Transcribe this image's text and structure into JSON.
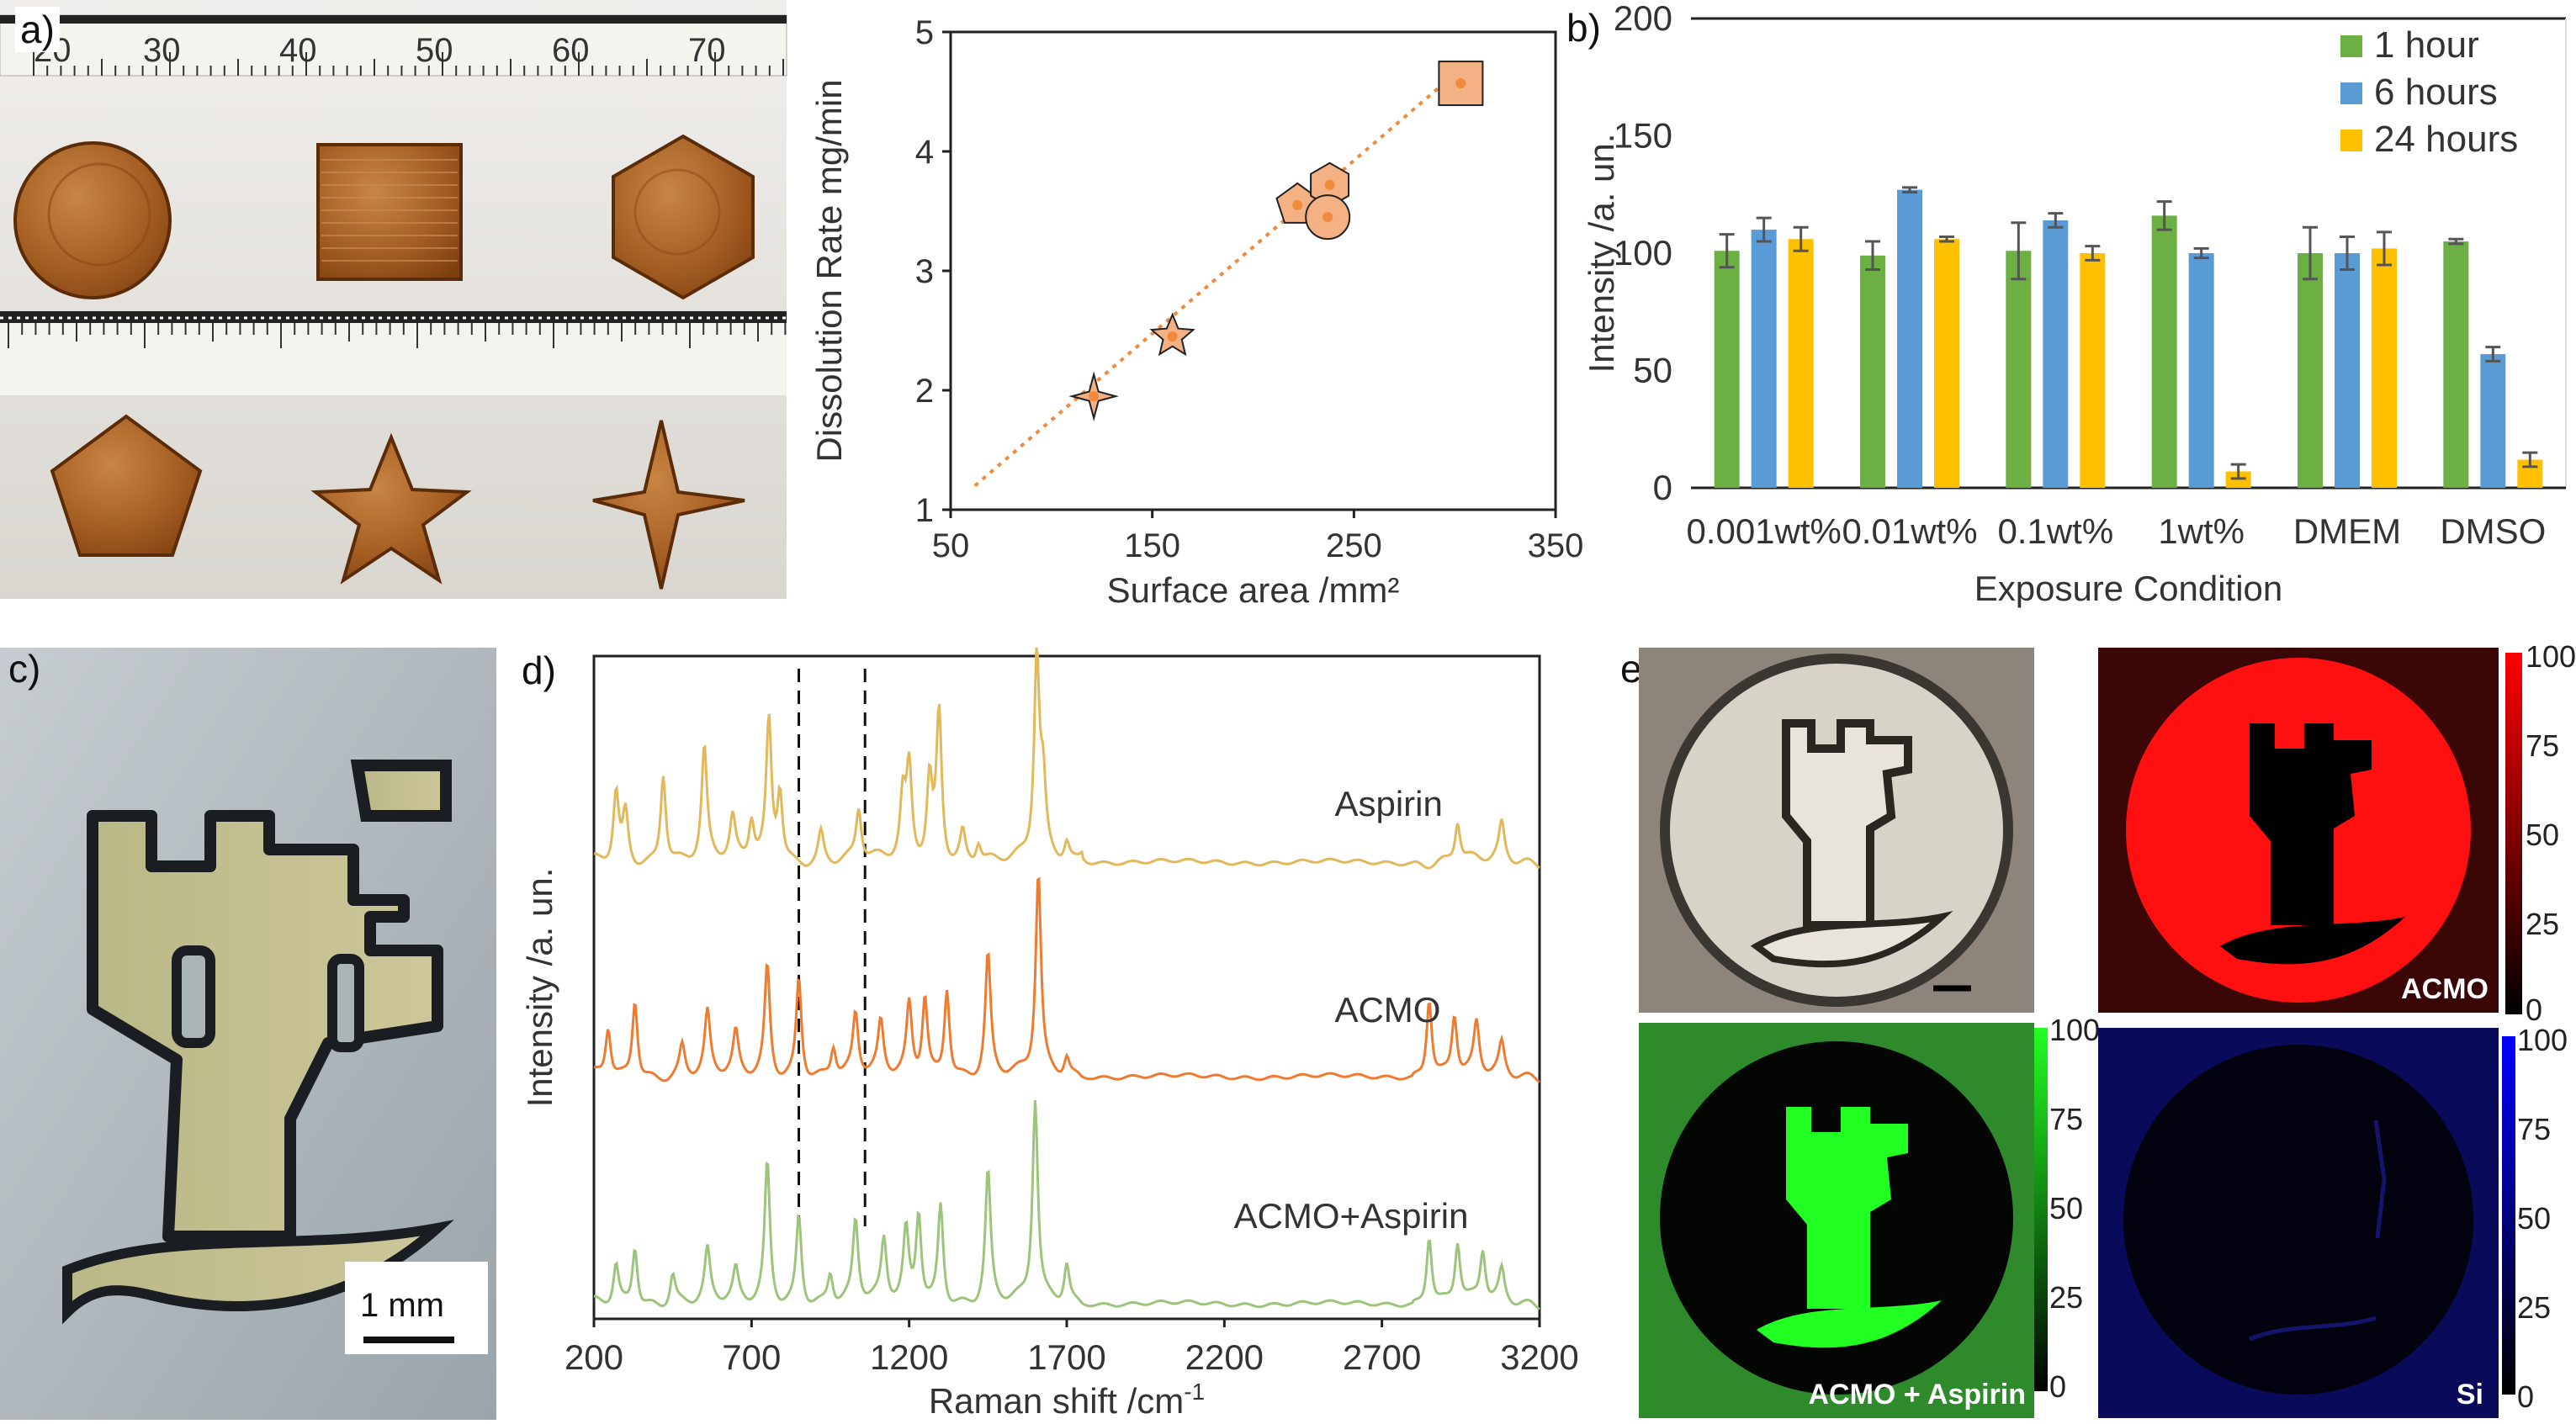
{
  "panels": {
    "a": "a)",
    "b": "b)",
    "c": "c)",
    "d": "d)",
    "e": "e)"
  },
  "ruler": {
    "top_ticks": [
      "20",
      "30",
      "40",
      "50",
      "60",
      "70"
    ]
  },
  "scalebar_c": "1 mm",
  "colors": {
    "orange": "#F08A3C",
    "green": "#6CB043",
    "blue": "#5B9BD5",
    "yellow": "#FFC000",
    "aspirin": "#E3B85A",
    "acmo": "#EE7B30",
    "mix": "#9DC47B"
  },
  "chart_data": [
    {
      "id": "dissolution",
      "type": "scatter",
      "xlabel": "Surface area /mm²",
      "ylabel": "Dissolution Rate mg/min",
      "xlim": [
        50,
        350
      ],
      "ylim": [
        1,
        5
      ],
      "xticks": [
        50,
        150,
        250,
        350
      ],
      "yticks": [
        1,
        2,
        3,
        4,
        5
      ],
      "points": [
        {
          "shape": "four-point-star",
          "x": 121,
          "y": 1.95
        },
        {
          "shape": "star",
          "x": 160,
          "y": 2.45
        },
        {
          "shape": "pentagon",
          "x": 222,
          "y": 3.55
        },
        {
          "shape": "hexagon",
          "x": 238,
          "y": 3.72
        },
        {
          "shape": "circle",
          "x": 237,
          "y": 3.45
        },
        {
          "shape": "square",
          "x": 303,
          "y": 4.57
        }
      ],
      "fit": {
        "x": [
          62,
          305
        ],
        "y": [
          1.2,
          4.72
        ]
      }
    },
    {
      "id": "intensity",
      "type": "bar",
      "xlabel": "Exposure Condition",
      "ylabel": "Intensity  /a. un.",
      "ylim": [
        0,
        200
      ],
      "yticks": [
        0,
        50,
        100,
        150,
        200
      ],
      "categories": [
        "0.001wt%",
        "0.01wt%",
        "0.1wt%",
        "1wt%",
        "DMEM",
        "DMSO"
      ],
      "legend_position": "top-right",
      "series": [
        {
          "name": "1 hour",
          "values": [
            101,
            99,
            101,
            116,
            100,
            105
          ],
          "errors": [
            7,
            6,
            12,
            6,
            11,
            1
          ]
        },
        {
          "name": "6 hours",
          "values": [
            110,
            127,
            114,
            100,
            100,
            57
          ],
          "errors": [
            5,
            1,
            3,
            2,
            7,
            3
          ]
        },
        {
          "name": "24 hours",
          "values": [
            106,
            106,
            100,
            7,
            102,
            12
          ],
          "errors": [
            5,
            1,
            3,
            3,
            7,
            3
          ]
        }
      ]
    },
    {
      "id": "raman",
      "type": "line",
      "xlabel": "Raman shift /cm",
      "xlabel_sup": "-1",
      "ylabel": "Intensity  /a. un.",
      "xlim": [
        200,
        3200
      ],
      "xticks": [
        200,
        700,
        1200,
        1700,
        2200,
        2700,
        3200
      ],
      "dashed_lines": [
        850,
        1060
      ],
      "series": [
        {
          "name": "Aspirin",
          "peaks": [
            [
              270,
              0.35
            ],
            [
              300,
              0.25
            ],
            [
              420,
              0.45
            ],
            [
              550,
              0.55
            ],
            [
              640,
              0.2
            ],
            [
              700,
              0.2
            ],
            [
              755,
              0.7
            ],
            [
              790,
              0.35
            ],
            [
              920,
              0.15
            ],
            [
              1040,
              0.25
            ],
            [
              1180,
              0.3
            ],
            [
              1200,
              0.45
            ],
            [
              1265,
              0.4
            ],
            [
              1295,
              0.75
            ],
            [
              1370,
              0.15
            ],
            [
              1420,
              0.1
            ],
            [
              1605,
              1.0
            ],
            [
              1625,
              0.35
            ],
            [
              1700,
              0.1
            ],
            [
              1750,
              0.05
            ],
            [
              2940,
              0.2
            ],
            [
              3080,
              0.18
            ]
          ]
        },
        {
          "name": "ACMO",
          "peaks": [
            [
              245,
              0.25
            ],
            [
              330,
              0.4
            ],
            [
              480,
              0.15
            ],
            [
              560,
              0.3
            ],
            [
              650,
              0.2
            ],
            [
              750,
              0.55
            ],
            [
              850,
              0.5
            ],
            [
              960,
              0.15
            ],
            [
              1030,
              0.3
            ],
            [
              1110,
              0.25
            ],
            [
              1200,
              0.35
            ],
            [
              1250,
              0.4
            ],
            [
              1320,
              0.45
            ],
            [
              1450,
              0.6
            ],
            [
              1610,
              1.0
            ],
            [
              1700,
              0.1
            ],
            [
              2850,
              0.4
            ],
            [
              2930,
              0.3
            ],
            [
              3000,
              0.25
            ],
            [
              3080,
              0.15
            ]
          ]
        },
        {
          "name": "ACMO+Aspirin",
          "peaks": [
            [
              270,
              0.2
            ],
            [
              330,
              0.3
            ],
            [
              450,
              0.15
            ],
            [
              560,
              0.25
            ],
            [
              650,
              0.15
            ],
            [
              750,
              0.7
            ],
            [
              850,
              0.45
            ],
            [
              950,
              0.15
            ],
            [
              1030,
              0.4
            ],
            [
              1120,
              0.3
            ],
            [
              1190,
              0.35
            ],
            [
              1230,
              0.45
            ],
            [
              1300,
              0.5
            ],
            [
              1450,
              0.65
            ],
            [
              1600,
              1.0
            ],
            [
              1700,
              0.2
            ],
            [
              2850,
              0.35
            ],
            [
              2940,
              0.3
            ],
            [
              3020,
              0.25
            ],
            [
              3080,
              0.15
            ]
          ]
        }
      ]
    }
  ],
  "maps": {
    "colorbar_ticks": [
      "100",
      "75",
      "50",
      "25",
      "0"
    ],
    "acmo_label": "ACMO",
    "mix_label": "ACMO + Aspirin",
    "si_label": "Si"
  }
}
